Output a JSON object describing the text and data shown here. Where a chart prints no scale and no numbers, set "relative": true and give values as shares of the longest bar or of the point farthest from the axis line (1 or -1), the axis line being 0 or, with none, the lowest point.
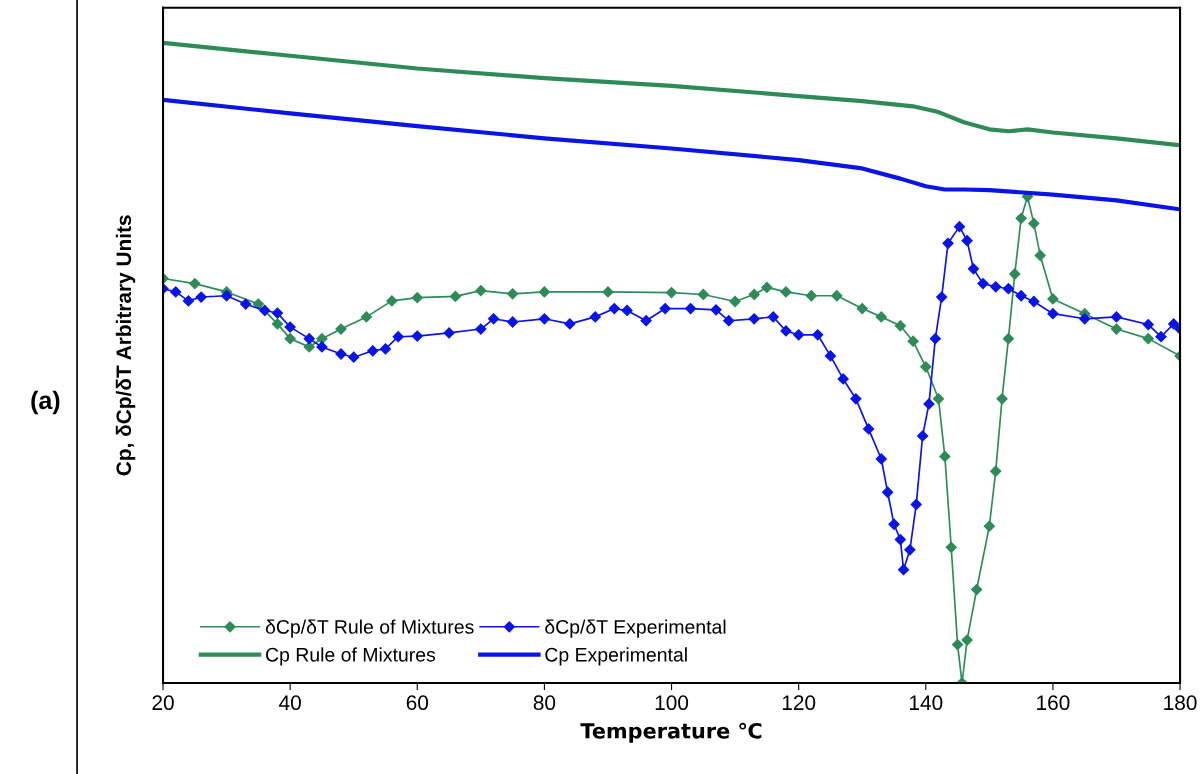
{
  "chart_data": {
    "type": "line",
    "relative": true,
    "xlabel": "Temperature ℃",
    "ylabel": "Cp, δCp/δT Arbitrary Units",
    "xlim": [
      20,
      180
    ],
    "xticks": [
      20,
      40,
      60,
      80,
      100,
      120,
      140,
      160,
      180
    ],
    "grid": false,
    "legend": "bottom left",
    "tick_labels": "x",
    "annotations": [
      "(a)"
    ],
    "series": [
      {
        "name": "δCp/δT Rule of Mixtures",
        "color": "#2e8b57",
        "marker": "diamond",
        "x": [
          20,
          25,
          30,
          35,
          38,
          40,
          43,
          45,
          48,
          52,
          56,
          60,
          66,
          70,
          75,
          80,
          90,
          100,
          105,
          110,
          113,
          115,
          118,
          122,
          126,
          130,
          133,
          136,
          138,
          140,
          142,
          143,
          144,
          145,
          145.7,
          146.5,
          148,
          150,
          151,
          152,
          153,
          154,
          155,
          156,
          157,
          158,
          160,
          165,
          170,
          175,
          180
        ],
        "values": [
          0.632,
          0.624,
          0.611,
          0.592,
          0.561,
          0.538,
          0.525,
          0.538,
          0.553,
          0.572,
          0.597,
          0.602,
          0.604,
          0.613,
          0.608,
          0.611,
          0.611,
          0.61,
          0.607,
          0.596,
          0.607,
          0.618,
          0.611,
          0.605,
          0.605,
          0.585,
          0.572,
          0.558,
          0.534,
          0.494,
          0.444,
          0.354,
          0.212,
          0.06,
          0,
          0.067,
          0.146,
          0.245,
          0.331,
          0.444,
          0.538,
          0.639,
          0.726,
          0.76,
          0.718,
          0.668,
          0.6,
          0.577,
          0.553,
          0.538,
          0.511
        ]
      },
      {
        "name": "δCp/δT Experimental",
        "color": "#0a14e6",
        "marker": "diamond",
        "x": [
          20,
          22,
          24,
          26,
          30,
          33,
          36,
          38,
          40,
          43,
          45,
          48,
          50,
          53,
          55,
          57,
          60,
          65,
          70,
          72,
          75,
          80,
          84,
          88,
          91,
          93,
          96,
          99,
          103,
          107,
          109,
          113,
          116,
          118,
          120,
          123,
          125,
          127,
          129,
          131,
          133,
          134,
          135,
          136,
          136.5,
          137.5,
          138.5,
          139.5,
          140.5,
          141.5,
          142.5,
          143.5,
          145.3,
          146.5,
          147.5,
          149,
          151,
          153,
          155,
          157,
          160,
          165,
          170,
          175,
          177,
          179,
          180
        ],
        "values": [
          0.616,
          0.611,
          0.597,
          0.603,
          0.605,
          0.592,
          0.582,
          0.578,
          0.556,
          0.538,
          0.525,
          0.514,
          0.509,
          0.519,
          0.522,
          0.541,
          0.542,
          0.547,
          0.553,
          0.569,
          0.564,
          0.569,
          0.561,
          0.572,
          0.585,
          0.582,
          0.566,
          0.585,
          0.585,
          0.583,
          0.566,
          0.569,
          0.572,
          0.55,
          0.544,
          0.544,
          0.511,
          0.475,
          0.444,
          0.397,
          0.35,
          0.298,
          0.248,
          0.224,
          0.177,
          0.208,
          0.279,
          0.386,
          0.436,
          0.538,
          0.603,
          0.687,
          0.713,
          0.691,
          0.647,
          0.624,
          0.619,
          0.616,
          0.605,
          0.596,
          0.577,
          0.569,
          0.572,
          0.56,
          0.541,
          0.561,
          0.553
        ]
      },
      {
        "name": "Cp Rule of Mixtures",
        "color": "#2e8b57",
        "marker": "none",
        "x": [
          20,
          40,
          60,
          80,
          100,
          120,
          130,
          138,
          142,
          146,
          150,
          153,
          156,
          160,
          170,
          180
        ],
        "values": [
          1.0,
          0.98,
          0.96,
          0.945,
          0.933,
          0.917,
          0.909,
          0.901,
          0.892,
          0.876,
          0.865,
          0.862,
          0.865,
          0.86,
          0.851,
          0.84
        ]
      },
      {
        "name": "Cp Experimental",
        "color": "#0a14e6",
        "marker": "none",
        "x": [
          20,
          40,
          60,
          80,
          100,
          120,
          130,
          136,
          140,
          143,
          146,
          150,
          160,
          170,
          180
        ],
        "values": [
          0.911,
          0.89,
          0.87,
          0.851,
          0.835,
          0.817,
          0.804,
          0.788,
          0.776,
          0.771,
          0.771,
          0.77,
          0.763,
          0.754,
          0.74
        ]
      }
    ]
  }
}
